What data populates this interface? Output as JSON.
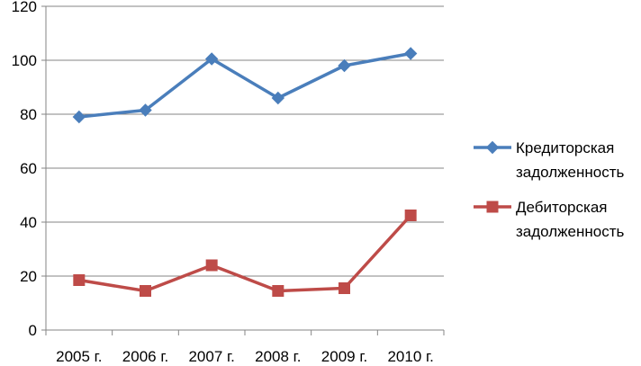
{
  "chart_data": {
    "type": "line",
    "categories": [
      "2005 г.",
      "2006 г.",
      "2007 г.",
      "2008 г.",
      "2009 г.",
      "2010 г."
    ],
    "series": [
      {
        "name": [
          "Кредиторская",
          "задолженность"
        ],
        "values": [
          79,
          81.5,
          100.5,
          86,
          98,
          102.5
        ],
        "color": "#4A7EBB",
        "marker": "diamond"
      },
      {
        "name": [
          "Дебиторская",
          "задолженность"
        ],
        "values": [
          18.5,
          14.5,
          24,
          14.5,
          15.5,
          42.5
        ],
        "color": "#BE4B48",
        "marker": "square"
      }
    ],
    "ylim": [
      0,
      120
    ],
    "yticks": [
      0,
      20,
      40,
      60,
      80,
      100,
      120
    ],
    "grid": true,
    "legend": "right",
    "title": "",
    "xlabel": "",
    "ylabel": ""
  }
}
